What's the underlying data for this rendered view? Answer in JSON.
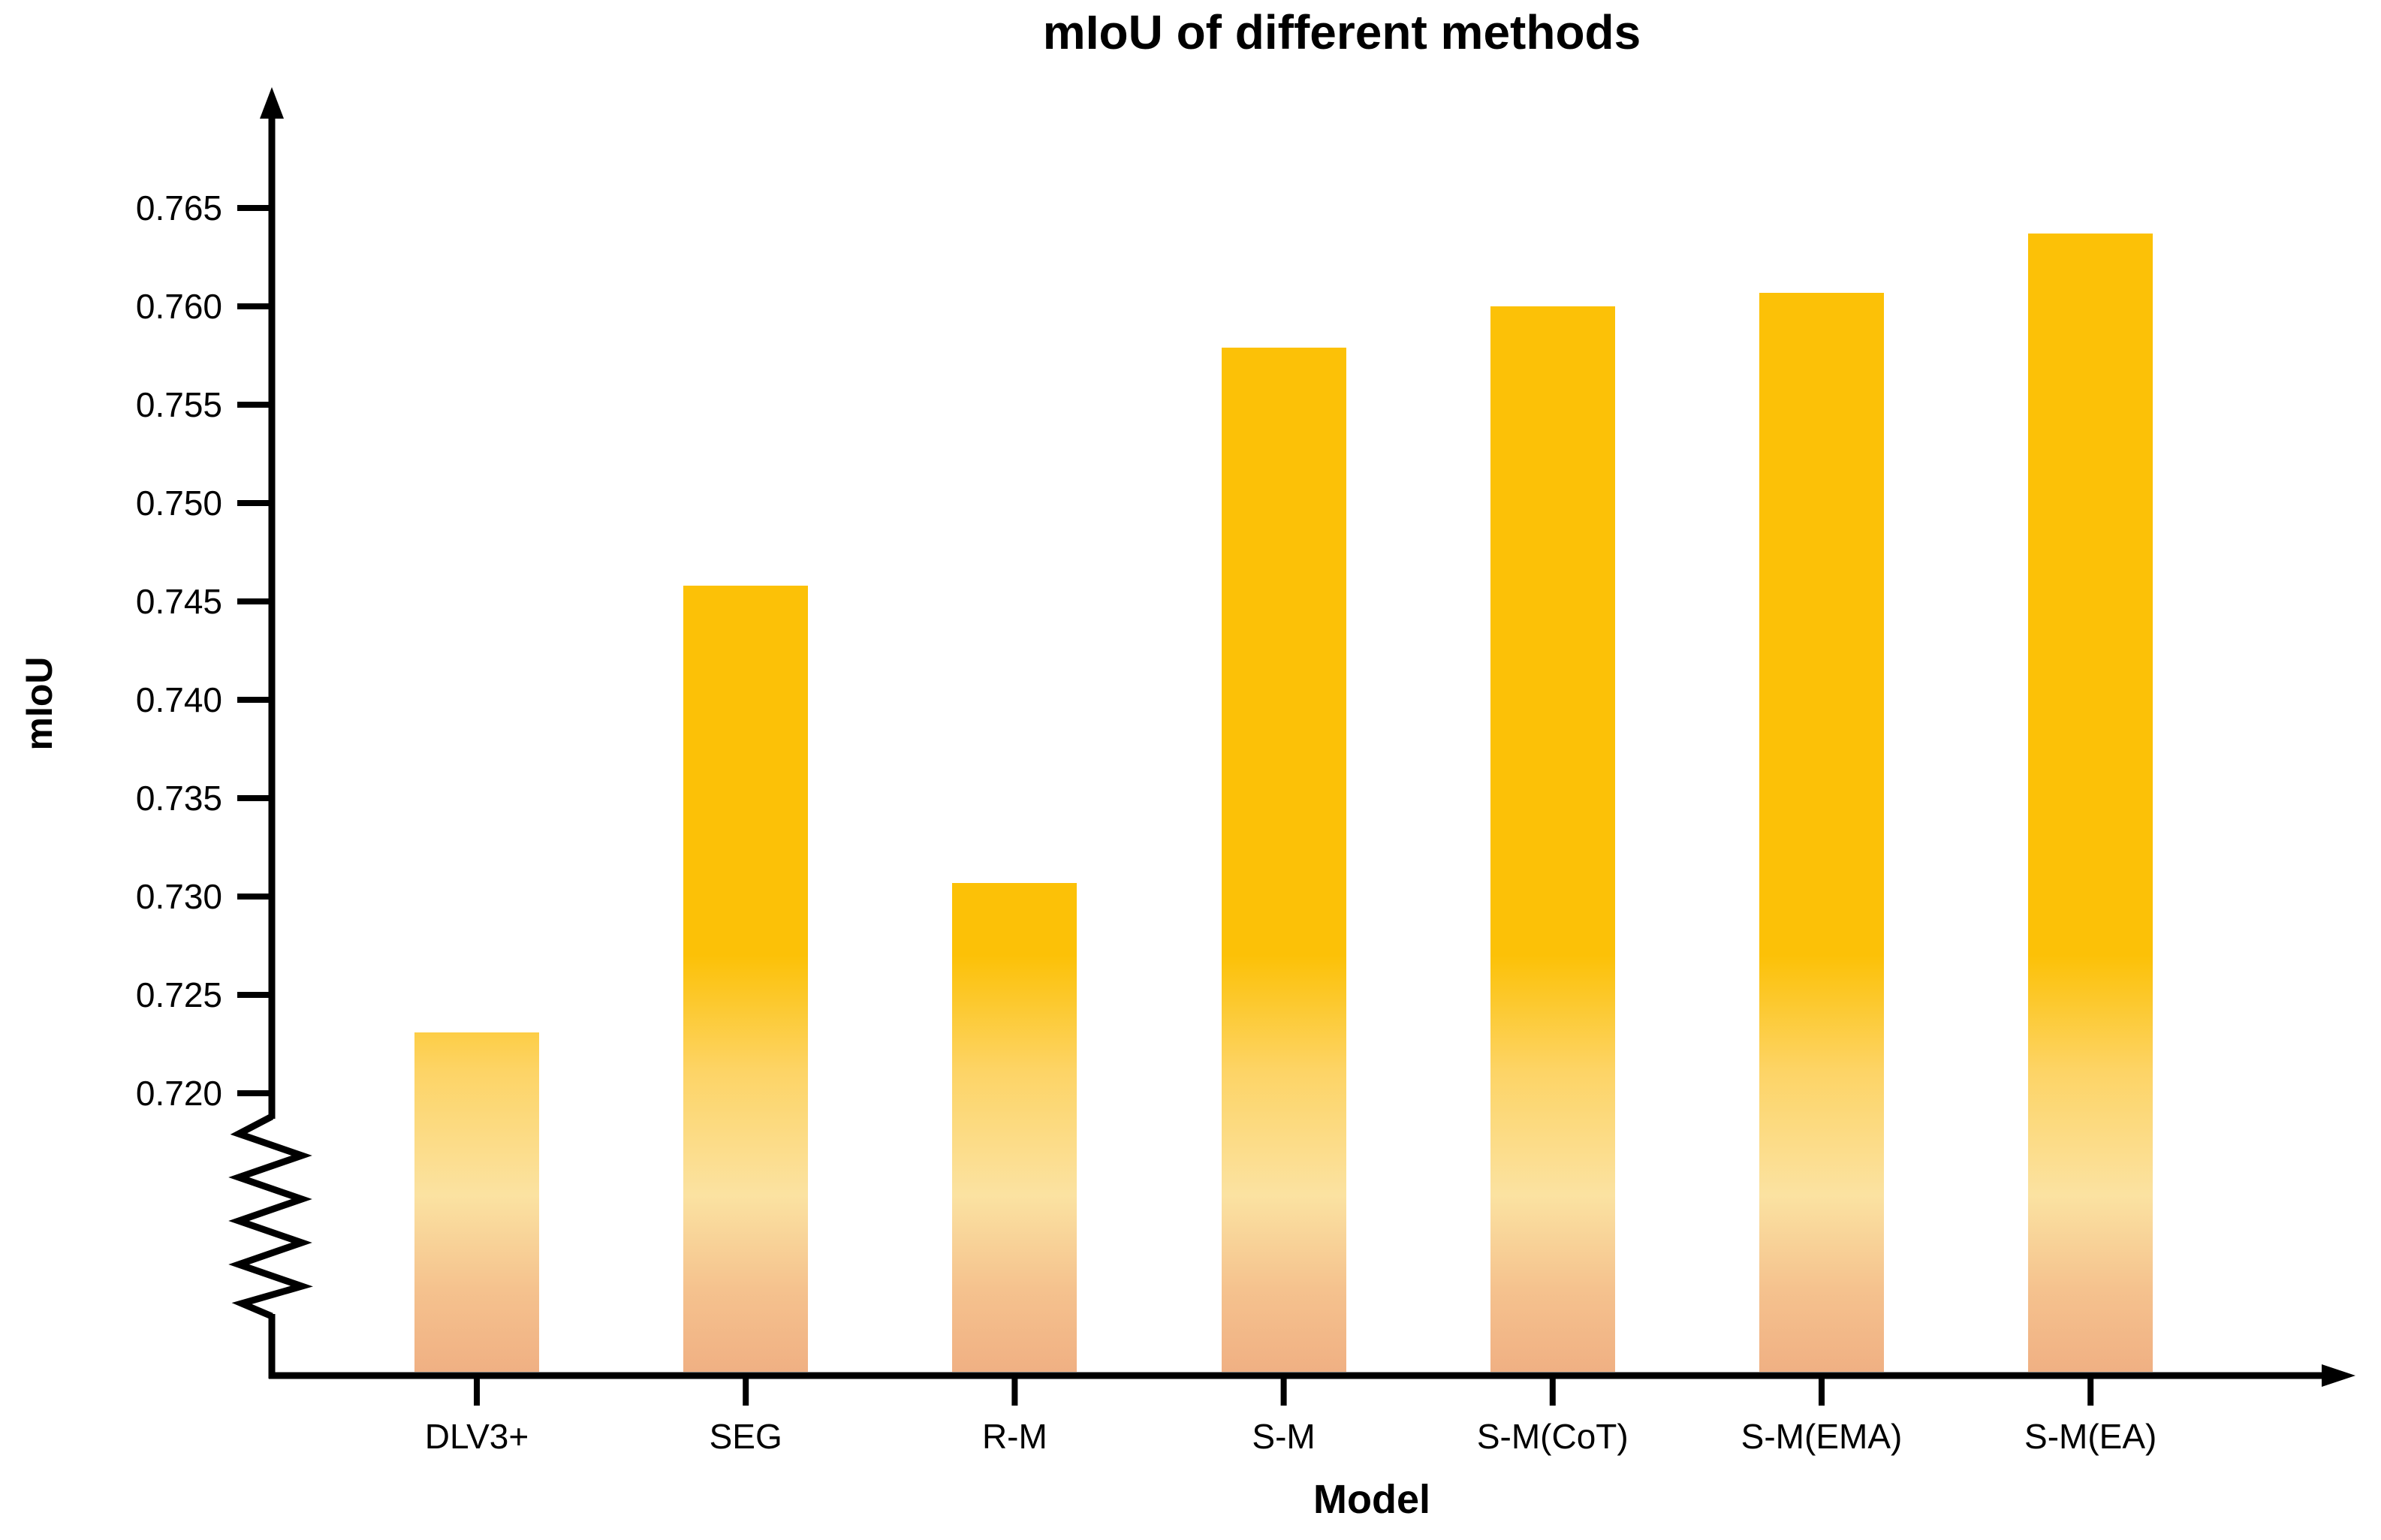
{
  "chart_data": {
    "type": "bar",
    "title": "mIoU of different methods",
    "xlabel": "Model",
    "ylabel": "mIoU",
    "categories": [
      "DLV3+",
      "SEG",
      "R-M",
      "S-M",
      "S-M(CoT)",
      "S-M(EMA)",
      "S-M(EA)"
    ],
    "values": [
      0.7231,
      0.7458,
      0.7307,
      0.7579,
      0.76,
      0.7607,
      0.7637
    ],
    "y_ticks": [
      0.765,
      0.76,
      0.755,
      0.75,
      0.745,
      0.74,
      0.735,
      0.73,
      0.725,
      0.72
    ],
    "y_tick_decimals": 3,
    "ylim_visible": [
      0.72,
      0.765
    ],
    "axis_break": true,
    "grid": false,
    "legend": null,
    "colors": {
      "bar_top": "#FCC107",
      "bar_mid_light": "#FBE2A1",
      "bar_bottom": "#F0B083",
      "axis": "#000000",
      "text": "#000000"
    }
  }
}
